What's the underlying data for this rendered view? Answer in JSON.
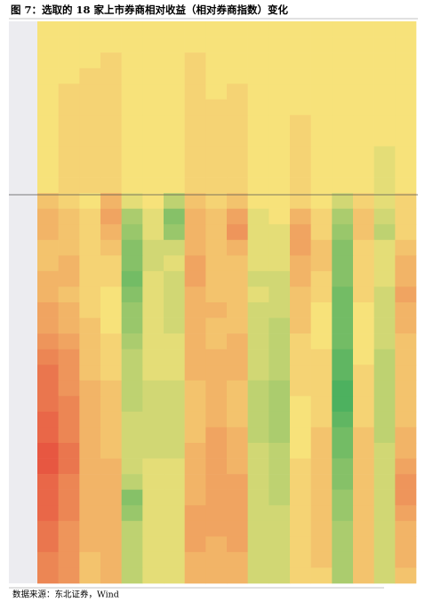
{
  "chart_data": {
    "type": "heatmap",
    "title": "图 7：选取的 18 家上市券商相对收益（相对券商指数）变化",
    "source": "数据来源：东北证券，Wind",
    "zlim": [
      -1,
      1
    ],
    "colorscale": [
      "#e5483b",
      "#f7e27a",
      "#3aab5c"
    ],
    "values": [
      [
        0,
        0,
        0,
        0,
        0,
        0,
        0,
        0,
        0,
        0,
        0,
        0,
        0,
        0,
        0,
        0,
        0,
        0
      ],
      [
        0,
        0,
        0,
        0,
        0,
        0,
        0,
        0,
        0,
        0,
        0,
        0,
        0,
        0,
        0,
        0,
        0,
        0
      ],
      [
        0,
        0,
        0,
        -0.1,
        0,
        0,
        0,
        -0.1,
        0,
        0,
        0,
        0,
        0,
        0,
        0,
        0,
        0,
        0
      ],
      [
        0,
        0,
        -0.1,
        -0.1,
        0,
        0,
        0,
        -0.1,
        0,
        0,
        0,
        0,
        0,
        0,
        0,
        0,
        0,
        0
      ],
      [
        0,
        -0.1,
        -0.1,
        -0.1,
        0,
        0,
        0,
        -0.1,
        0,
        -0.1,
        0,
        0,
        0,
        0,
        0,
        0,
        0,
        0
      ],
      [
        0,
        -0.1,
        -0.1,
        -0.1,
        0,
        0,
        0,
        -0.1,
        -0.1,
        -0.1,
        0,
        0,
        0,
        0,
        0,
        0,
        0,
        0
      ],
      [
        0,
        -0.1,
        -0.1,
        -0.1,
        0,
        0,
        0,
        -0.1,
        -0.1,
        -0.1,
        0,
        0,
        -0.1,
        0,
        0,
        0,
        0,
        0
      ],
      [
        0,
        -0.1,
        -0.1,
        -0.1,
        0,
        0,
        0,
        -0.1,
        -0.1,
        -0.1,
        0,
        0,
        -0.1,
        0,
        0,
        0,
        0,
        0
      ],
      [
        0,
        -0.1,
        -0.1,
        -0.1,
        0,
        0,
        0,
        -0.1,
        -0.1,
        -0.1,
        0,
        0,
        -0.1,
        0,
        0,
        0,
        0.1,
        0
      ],
      [
        0,
        -0.1,
        -0.1,
        -0.1,
        0,
        0,
        0,
        -0.1,
        -0.1,
        -0.1,
        0,
        0,
        -0.1,
        0,
        0,
        0,
        0.1,
        0
      ],
      [
        0,
        -0.1,
        -0.1,
        -0.1,
        0,
        0,
        0,
        -0.1,
        -0.1,
        -0.1,
        0,
        0,
        -0.1,
        0,
        0,
        0,
        0.1,
        0
      ],
      [
        -0.2,
        -0.1,
        0,
        -0.3,
        0.1,
        0,
        0.3,
        -0.2,
        -0.1,
        -0.2,
        0,
        0,
        -0.1,
        0,
        0.2,
        -0.1,
        0.1,
        -0.1
      ],
      [
        -0.3,
        -0.2,
        -0.1,
        -0.4,
        0.4,
        0.1,
        0.6,
        -0.3,
        -0.2,
        -0.4,
        0.1,
        0,
        -0.3,
        -0.1,
        0.4,
        -0.2,
        0.2,
        -0.1
      ],
      [
        -0.3,
        -0.2,
        -0.1,
        -0.3,
        0.5,
        0.1,
        0.5,
        -0.3,
        -0.2,
        -0.5,
        0.1,
        0.1,
        -0.4,
        -0.1,
        0.5,
        -0.2,
        0.3,
        -0.1
      ],
      [
        -0.2,
        -0.2,
        -0.1,
        -0.2,
        0.6,
        0.2,
        0.2,
        -0.3,
        -0.2,
        -0.3,
        0.1,
        0.1,
        -0.4,
        -0.2,
        0.6,
        -0.1,
        0.1,
        -0.2
      ],
      [
        -0.2,
        -0.3,
        -0.1,
        -0.1,
        0.6,
        0.2,
        0.1,
        -0.4,
        -0.2,
        -0.2,
        0.1,
        0.1,
        -0.3,
        -0.2,
        0.6,
        -0.1,
        0.1,
        -0.3
      ],
      [
        -0.3,
        -0.3,
        -0.1,
        -0.1,
        0.7,
        0.1,
        0.2,
        -0.4,
        -0.2,
        -0.2,
        0.2,
        0.2,
        -0.3,
        -0.1,
        0.6,
        -0.1,
        0.1,
        -0.3
      ],
      [
        -0.3,
        -0.2,
        -0.1,
        0,
        0.6,
        0.1,
        0.2,
        -0.3,
        -0.2,
        -0.2,
        0.1,
        0.2,
        -0.2,
        -0.1,
        0.7,
        -0.1,
        0.2,
        -0.4
      ],
      [
        -0.4,
        -0.3,
        -0.1,
        0,
        0.5,
        0.1,
        0.2,
        -0.3,
        -0.3,
        -0.2,
        0.2,
        0.2,
        -0.2,
        0,
        0.7,
        0,
        0.2,
        -0.3
      ],
      [
        -0.4,
        -0.3,
        -0.2,
        0,
        0.5,
        0.1,
        0.2,
        -0.3,
        -0.2,
        -0.2,
        0.2,
        0.3,
        -0.2,
        0,
        0.7,
        0,
        0.2,
        -0.3
      ],
      [
        -0.5,
        -0.4,
        -0.2,
        -0.1,
        0.4,
        0.1,
        0.1,
        -0.3,
        -0.2,
        -0.3,
        0.2,
        0.3,
        -0.1,
        0,
        0.7,
        0,
        0.2,
        -0.2
      ],
      [
        -0.6,
        -0.5,
        -0.2,
        -0.1,
        0.3,
        0.1,
        0.1,
        -0.3,
        -0.3,
        -0.3,
        0.2,
        0.3,
        -0.1,
        -0.1,
        0.8,
        0,
        0.3,
        -0.2
      ],
      [
        -0.7,
        -0.5,
        -0.2,
        -0.1,
        0.3,
        0.1,
        0.1,
        -0.3,
        -0.3,
        -0.3,
        0.2,
        0.3,
        -0.1,
        -0.1,
        0.8,
        -0.1,
        0.3,
        -0.2
      ],
      [
        -0.7,
        -0.5,
        -0.3,
        -0.2,
        0.3,
        0.2,
        0.2,
        -0.2,
        -0.3,
        -0.2,
        0.3,
        0.4,
        -0.1,
        -0.1,
        0.9,
        -0.1,
        0.3,
        -0.2
      ],
      [
        -0.7,
        -0.6,
        -0.3,
        -0.2,
        0.3,
        0.2,
        0.2,
        -0.2,
        -0.3,
        -0.2,
        0.3,
        0.4,
        0,
        -0.1,
        0.9,
        -0.1,
        0.3,
        -0.2
      ],
      [
        -0.8,
        -0.6,
        -0.3,
        -0.2,
        0.2,
        0.2,
        0.2,
        -0.2,
        -0.3,
        -0.2,
        0.3,
        0.4,
        0,
        -0.1,
        0.8,
        -0.1,
        0.3,
        -0.2
      ],
      [
        -0.8,
        -0.6,
        -0.3,
        -0.2,
        0.2,
        0.2,
        0.2,
        -0.2,
        -0.4,
        -0.3,
        0.3,
        0.4,
        0,
        -0.2,
        0.7,
        -0.2,
        0.3,
        -0.3
      ],
      [
        -0.9,
        -0.7,
        -0.3,
        -0.2,
        0.2,
        0.2,
        0.2,
        -0.3,
        -0.4,
        -0.3,
        0.2,
        0.3,
        0,
        -0.2,
        0.7,
        -0.2,
        0.2,
        -0.3
      ],
      [
        -0.9,
        -0.7,
        -0.3,
        -0.3,
        0.2,
        0.1,
        0.1,
        -0.3,
        -0.4,
        -0.3,
        0.2,
        0.3,
        -0.1,
        -0.2,
        0.6,
        -0.2,
        0.2,
        -0.4
      ],
      [
        -0.8,
        -0.6,
        -0.3,
        -0.3,
        0.3,
        0.1,
        0.1,
        -0.3,
        -0.4,
        -0.4,
        0.2,
        0.3,
        -0.1,
        -0.2,
        0.6,
        -0.2,
        0.2,
        -0.5
      ],
      [
        -0.8,
        -0.6,
        -0.3,
        -0.3,
        0.6,
        0.1,
        0.1,
        -0.3,
        -0.4,
        -0.4,
        0.2,
        0.3,
        -0.1,
        -0.2,
        0.5,
        -0.2,
        0.2,
        -0.5
      ],
      [
        -0.8,
        -0.6,
        -0.3,
        -0.3,
        0.5,
        0.1,
        0.1,
        -0.4,
        -0.4,
        -0.4,
        0.2,
        0.2,
        -0.1,
        -0.2,
        0.5,
        -0.2,
        0.2,
        -0.4
      ],
      [
        -0.7,
        -0.5,
        -0.3,
        -0.3,
        0.3,
        0.1,
        0.1,
        -0.4,
        -0.4,
        -0.4,
        0.2,
        0.2,
        -0.1,
        -0.2,
        0.4,
        -0.2,
        0.2,
        -0.3
      ],
      [
        -0.7,
        -0.5,
        -0.3,
        -0.3,
        0.3,
        0.1,
        0.1,
        -0.4,
        -0.3,
        -0.4,
        0.2,
        0.2,
        -0.1,
        -0.2,
        0.4,
        -0.2,
        0.2,
        -0.3
      ],
      [
        -0.6,
        -0.5,
        -0.2,
        -0.3,
        0.3,
        0.1,
        0.1,
        -0.3,
        -0.3,
        -0.3,
        0.2,
        0.2,
        -0.1,
        -0.2,
        0.4,
        -0.2,
        0.2,
        -0.3
      ],
      [
        -0.6,
        -0.5,
        -0.2,
        -0.3,
        0.3,
        0.1,
        0.1,
        -0.3,
        -0.3,
        -0.3,
        0.2,
        0.2,
        -0.1,
        -0.1,
        0.4,
        -0.2,
        0.2,
        -0.2
      ]
    ]
  }
}
